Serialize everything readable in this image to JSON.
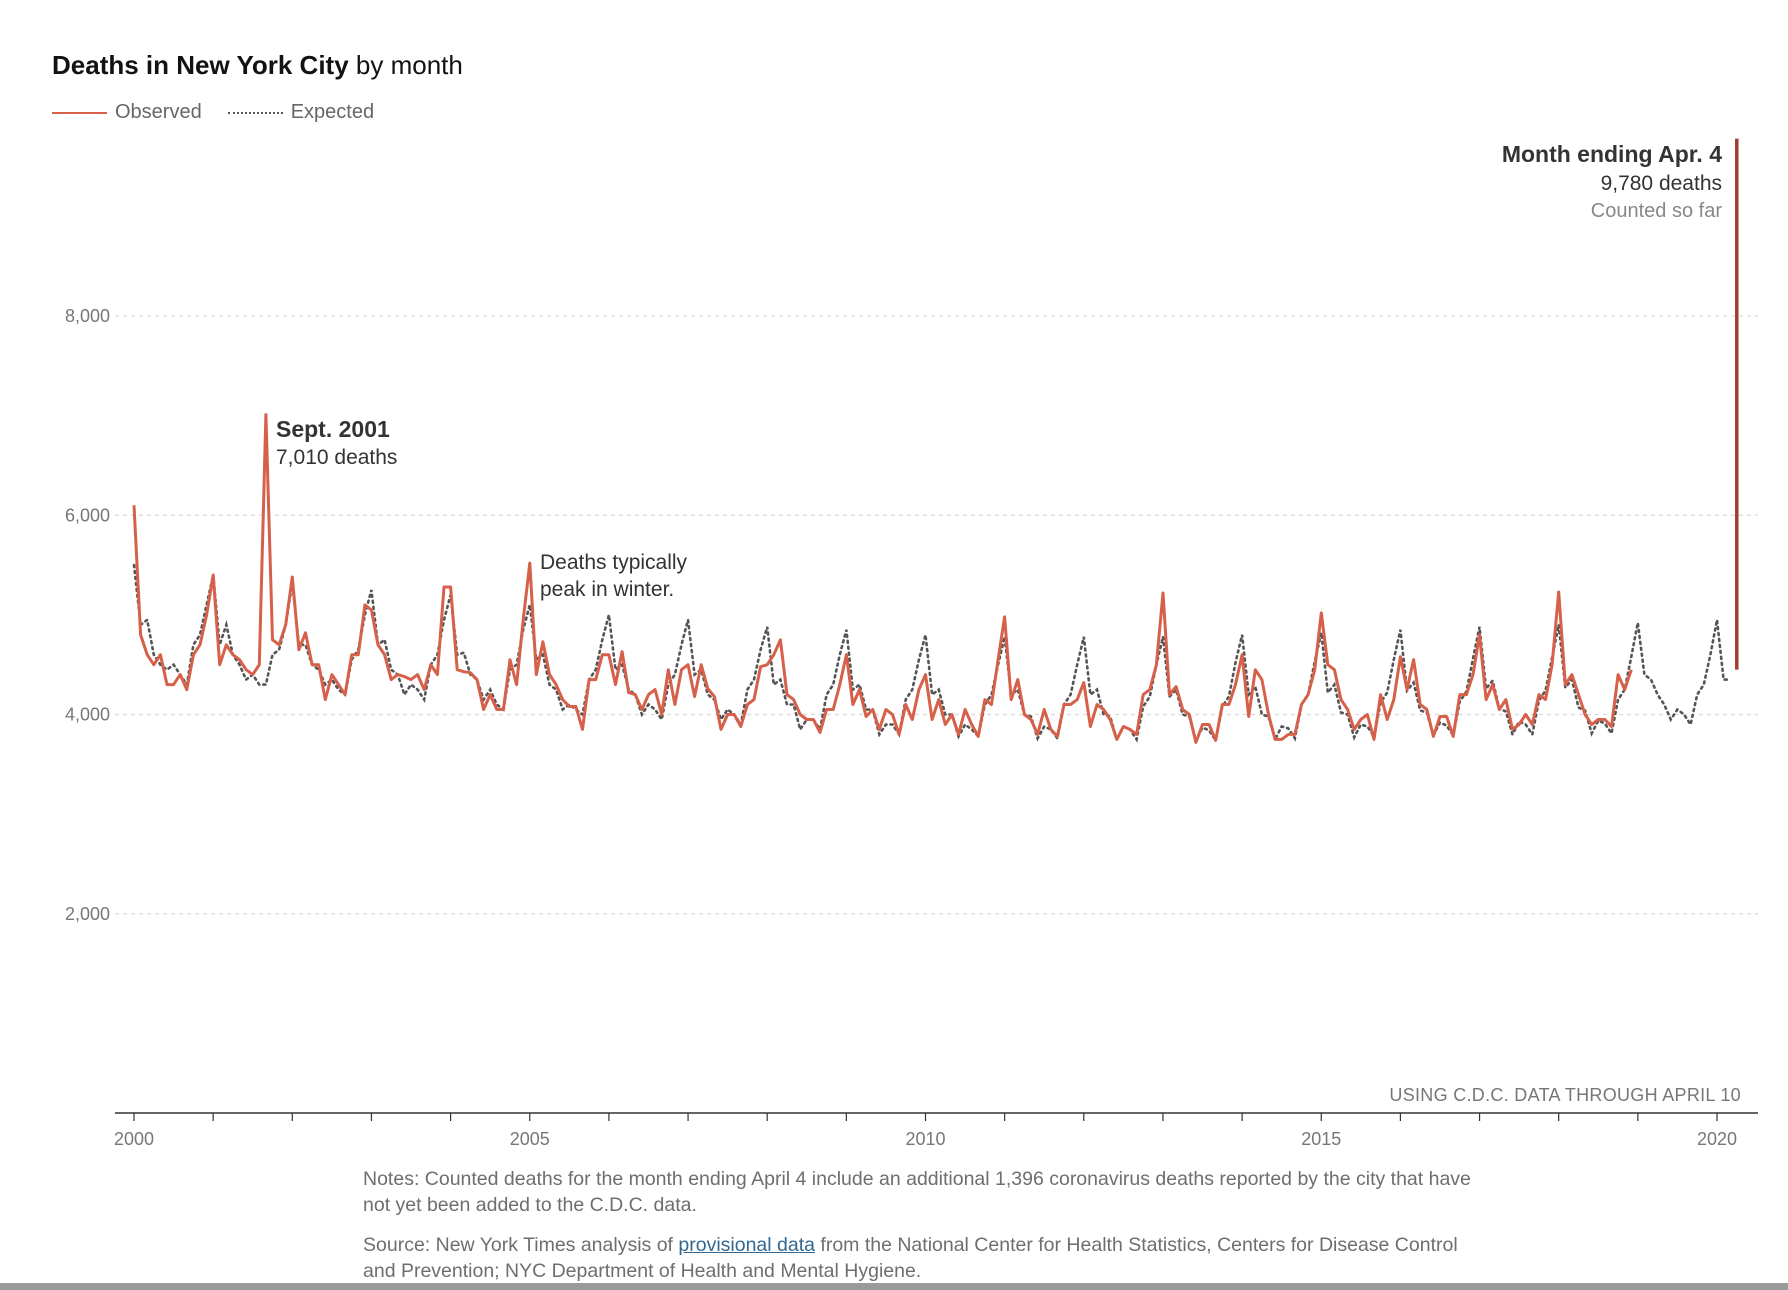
{
  "title": {
    "bold": "Deaths in New York City",
    "rest": " by month"
  },
  "legend": {
    "observed": "Observed",
    "expected": "Expected"
  },
  "colors": {
    "observed": "#d66049",
    "expected": "#555555",
    "current": "#a33b31",
    "grid": "#d9d9d9"
  },
  "annotations": {
    "sept2001": {
      "title": "Sept. 2001",
      "value": "7,010 deaths"
    },
    "winter": {
      "line1": "Deaths typically",
      "line2": "peak in winter."
    },
    "april": {
      "title": "Month ending Apr. 4",
      "value": "9,780 deaths",
      "note": "Counted so far"
    },
    "through": "USING C.D.C. DATA THROUGH APRIL 10"
  },
  "notes": "Notes: Counted deaths for the month ending April 4 include an additional 1,396 coronavirus deaths reported by the city that have not yet been added to the C.D.C. data.",
  "source": {
    "before": "Source: New York Times analysis of ",
    "link": "provisional data",
    "after": " from the National Center for Health Statistics, Centers for Disease Control and Prevention; NYC Department of Health and Mental Hygiene."
  },
  "chart_data": {
    "type": "line",
    "xlim": [
      2000,
      2020.3
    ],
    "ylim": [
      0,
      8000
    ],
    "yticks": [
      2000,
      4000,
      6000,
      8000
    ],
    "ytick_labels": [
      "2,000",
      "4,000",
      "6,000",
      "8,000"
    ],
    "xticks": [
      2000,
      2005,
      2010,
      2015,
      2020
    ],
    "xtick_labels": [
      "2000",
      "2005",
      "2010",
      "2015",
      "2020"
    ],
    "grid": true,
    "legend_position": "top-left",
    "series": [
      {
        "name": "Observed",
        "style": "solid",
        "x_start": 2000,
        "step_months": 1,
        "values": [
          6100,
          4800,
          4600,
          4500,
          4600,
          4300,
          4300,
          4400,
          4250,
          4600,
          4700,
          5000,
          5400,
          4500,
          4700,
          4600,
          4550,
          4450,
          4400,
          4500,
          7010,
          4750,
          4700,
          4900,
          5380,
          4650,
          4820,
          4500,
          4500,
          4150,
          4400,
          4300,
          4200,
          4600,
          4600,
          5100,
          5050,
          4700,
          4600,
          4350,
          4400,
          4380,
          4350,
          4400,
          4250,
          4500,
          4400,
          5280,
          5280,
          4450,
          4430,
          4420,
          4350,
          4050,
          4200,
          4050,
          4050,
          4550,
          4300,
          4950,
          5520,
          4400,
          4730,
          4400,
          4300,
          4150,
          4080,
          4080,
          3850,
          4350,
          4350,
          4600,
          4600,
          4300,
          4630,
          4220,
          4200,
          4050,
          4200,
          4250,
          4000,
          4450,
          4100,
          4450,
          4500,
          4180,
          4500,
          4260,
          4180,
          3850,
          4000,
          4000,
          3880,
          4100,
          4150,
          4480,
          4500,
          4600,
          4750,
          4200,
          4150,
          4000,
          3950,
          3950,
          3820,
          4050,
          4050,
          4300,
          4600,
          4100,
          4250,
          3980,
          4050,
          3850,
          4050,
          4000,
          3800,
          4100,
          3950,
          4250,
          4400,
          3950,
          4150,
          3900,
          4000,
          3800,
          4050,
          3900,
          3780,
          4150,
          4100,
          4550,
          4980,
          4150,
          4350,
          4000,
          3950,
          3800,
          4050,
          3850,
          3780,
          4100,
          4100,
          4150,
          4320,
          3880,
          4100,
          4050,
          3950,
          3750,
          3880,
          3850,
          3800,
          4200,
          4250,
          4500,
          5220,
          4200,
          4280,
          4050,
          4000,
          3720,
          3900,
          3900,
          3740,
          4100,
          4100,
          4300,
          4600,
          3980,
          4450,
          4350,
          4000,
          3750,
          3750,
          3800,
          3800,
          4100,
          4200,
          4450,
          5020,
          4500,
          4450,
          4150,
          4050,
          3850,
          3950,
          4000,
          3750,
          4200,
          3950,
          4150,
          4580,
          4250,
          4550,
          4100,
          4050,
          3780,
          3980,
          3980,
          3780,
          4200,
          4200,
          4400,
          4800,
          4150,
          4300,
          4050,
          4150,
          3850,
          3900,
          4000,
          3900,
          4200,
          4150,
          4500,
          5230,
          4300,
          4400,
          4200,
          4000,
          3900,
          3950,
          3950,
          3880,
          4400,
          4250,
          4450
        ]
      },
      {
        "name": "Expected",
        "style": "dotted",
        "x_start": 2000,
        "step_months": 1,
        "values": [
          5500,
          4900,
          4950,
          4600,
          4500,
          4450,
          4500,
          4400,
          4300,
          4700,
          4800,
          5100,
          5400,
          4700,
          4900,
          4600,
          4500,
          4350,
          4400,
          4300,
          4300,
          4600,
          4650,
          4900,
          5320,
          4700,
          4700,
          4500,
          4450,
          4300,
          4350,
          4250,
          4200,
          4550,
          4650,
          5000,
          5250,
          4700,
          4750,
          4450,
          4400,
          4200,
          4300,
          4250,
          4150,
          4500,
          4600,
          4950,
          5200,
          4600,
          4620,
          4400,
          4350,
          4150,
          4250,
          4100,
          4050,
          4450,
          4500,
          4850,
          5100,
          4550,
          4600,
          4300,
          4250,
          4050,
          4100,
          4050,
          4000,
          4350,
          4450,
          4750,
          5000,
          4450,
          4500,
          4250,
          4200,
          4000,
          4100,
          4050,
          3950,
          4300,
          4400,
          4700,
          4950,
          4400,
          4450,
          4200,
          4150,
          3950,
          4050,
          4000,
          3900,
          4250,
          4350,
          4650,
          4880,
          4300,
          4350,
          4100,
          4100,
          3850,
          3950,
          3950,
          3850,
          4200,
          4300,
          4600,
          4850,
          4250,
          4300,
          4050,
          4050,
          3800,
          3900,
          3900,
          3800,
          4150,
          4250,
          4550,
          4800,
          4200,
          4250,
          4000,
          4000,
          3780,
          3900,
          3850,
          3780,
          4100,
          4200,
          4500,
          4780,
          4200,
          4250,
          4000,
          3980,
          3760,
          3880,
          3850,
          3760,
          4100,
          4200,
          4500,
          4780,
          4200,
          4250,
          4000,
          3980,
          3750,
          3880,
          3850,
          3750,
          4080,
          4180,
          4500,
          4780,
          4180,
          4250,
          4000,
          3980,
          3740,
          3870,
          3840,
          3740,
          4080,
          4180,
          4520,
          4800,
          4200,
          4280,
          4000,
          3980,
          3750,
          3880,
          3860,
          3760,
          4100,
          4200,
          4530,
          4820,
          4220,
          4300,
          4020,
          4000,
          3770,
          3900,
          3880,
          3780,
          4120,
          4220,
          4550,
          4850,
          4240,
          4320,
          4040,
          4020,
          3790,
          3920,
          3890,
          3790,
          4130,
          4230,
          4560,
          4880,
          4260,
          4340,
          4060,
          4030,
          3800,
          3930,
          3900,
          3800,
          4140,
          4240,
          4570,
          4900,
          4270,
          4350,
          4070,
          4040,
          3810,
          3940,
          3910,
          3810,
          4150,
          4250,
          4580,
          4920,
          4400,
          4350,
          4200,
          4100,
          3950,
          4050,
          4000,
          3900,
          4200,
          4300,
          4600,
          4950,
          4350,
          4350
        ]
      }
    ],
    "current": {
      "x": 2020.25,
      "low": 4450,
      "high": 9780,
      "label": "9,780 deaths"
    }
  }
}
